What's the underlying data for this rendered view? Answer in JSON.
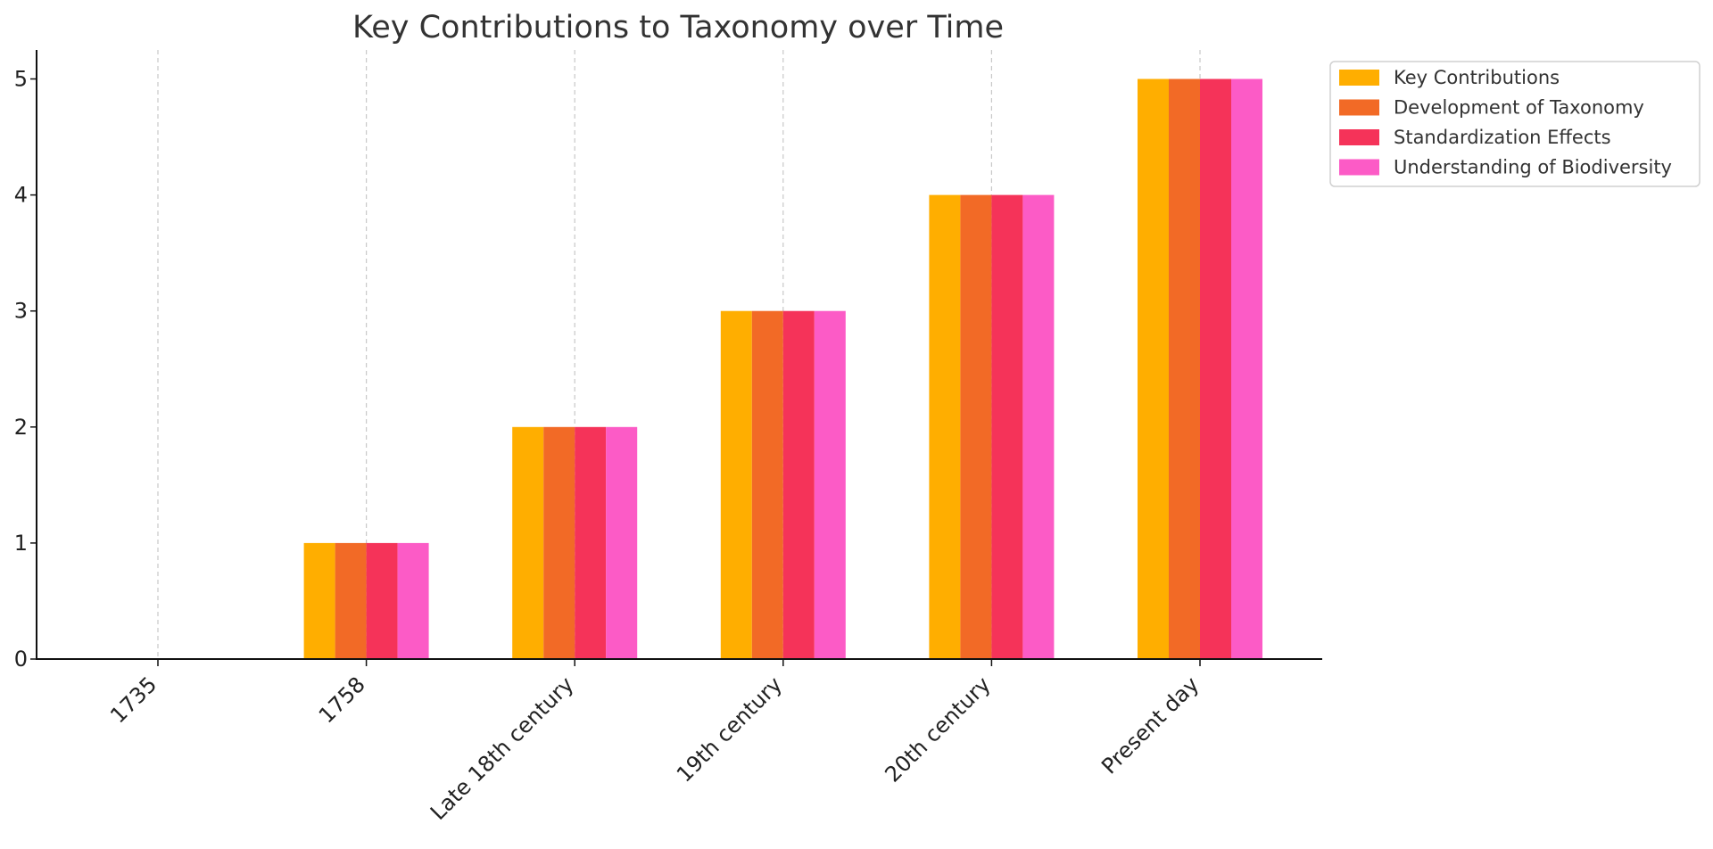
{
  "chart_data": {
    "type": "bar",
    "title": "Key Contributions to Taxonomy over Time",
    "xlabel": "",
    "ylabel": "",
    "categories": [
      "1735",
      "1758",
      "Late 18th century",
      "19th century",
      "20th century",
      "Present day"
    ],
    "series": [
      {
        "name": "Key Contributions",
        "color": "#FFAE00",
        "values": [
          0,
          1,
          2,
          3,
          4,
          5
        ]
      },
      {
        "name": "Development of Taxonomy",
        "color": "#F26A26",
        "values": [
          0,
          1,
          2,
          3,
          4,
          5
        ]
      },
      {
        "name": "Standardization Effects",
        "color": "#F53359",
        "values": [
          0,
          1,
          2,
          3,
          4,
          5
        ]
      },
      {
        "name": "Understanding of Biodiversity",
        "color": "#FC5BC6",
        "values": [
          0,
          1,
          2,
          3,
          4,
          5
        ]
      }
    ],
    "ylim": [
      0,
      5.25
    ],
    "yticks": [
      0,
      1,
      2,
      3,
      4,
      5
    ],
    "grid": "x-dashed",
    "legend_position": "top-right-outside"
  }
}
